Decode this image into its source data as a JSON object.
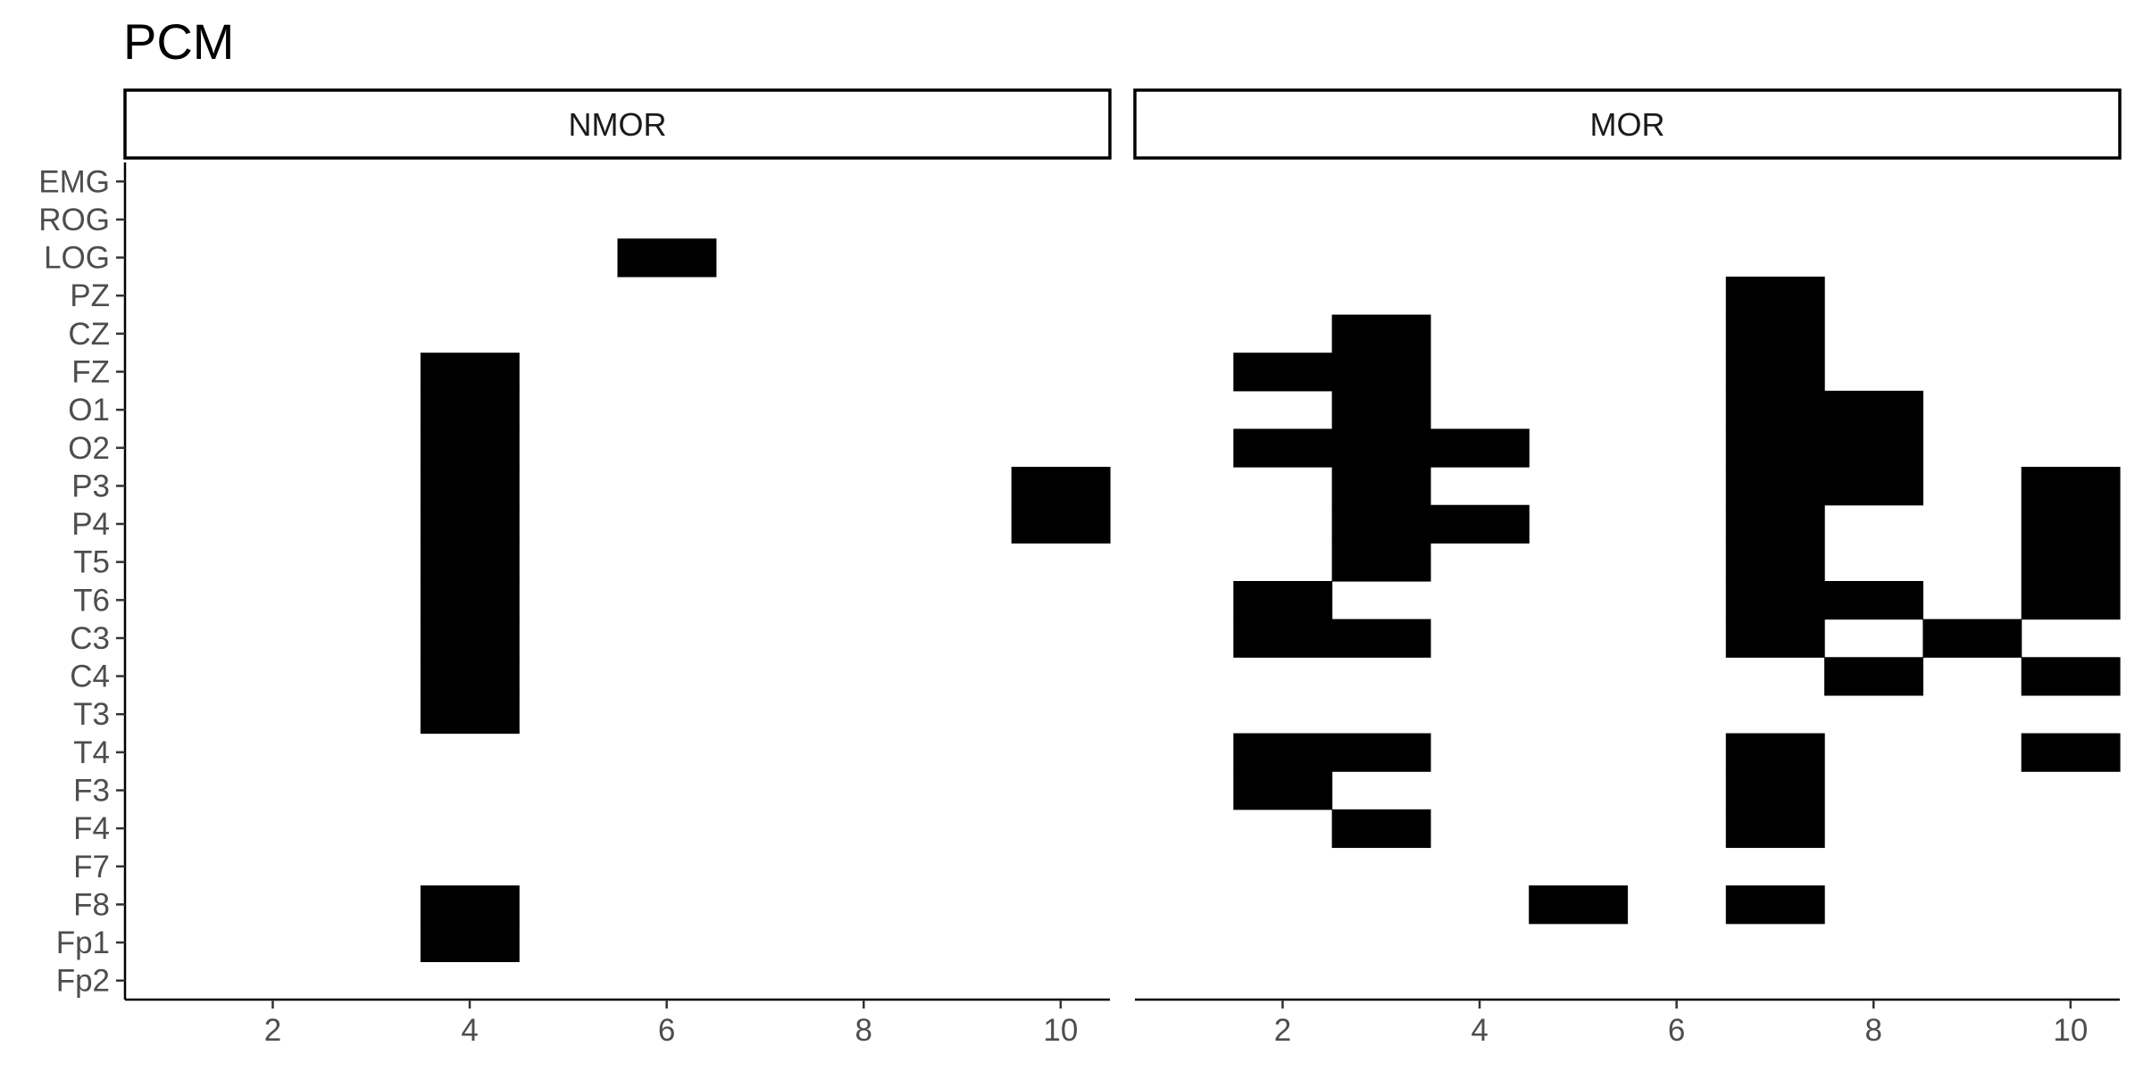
{
  "chart_data": {
    "type": "heatmap",
    "title": "PCM",
    "xlabel": "",
    "ylabel": "",
    "xlim": [
      0.5,
      10.5
    ],
    "x_ticks": [
      2,
      4,
      6,
      8,
      10
    ],
    "y_categories": [
      "EMG",
      "ROG",
      "LOG",
      "PZ",
      "CZ",
      "FZ",
      "O1",
      "O2",
      "P3",
      "P4",
      "T5",
      "T6",
      "C3",
      "C4",
      "T3",
      "T4",
      "F3",
      "F4",
      "F7",
      "F8",
      "Fp1",
      "Fp2"
    ],
    "fill_color": "#000000",
    "grid": false,
    "legend": "none",
    "panels": [
      {
        "name": "NMOR",
        "tiles": [
          {
            "x": 4,
            "y": "FZ"
          },
          {
            "x": 4,
            "y": "O1"
          },
          {
            "x": 4,
            "y": "O2"
          },
          {
            "x": 4,
            "y": "P3"
          },
          {
            "x": 4,
            "y": "P4"
          },
          {
            "x": 4,
            "y": "T5"
          },
          {
            "x": 4,
            "y": "T6"
          },
          {
            "x": 4,
            "y": "C3"
          },
          {
            "x": 4,
            "y": "C4"
          },
          {
            "x": 4,
            "y": "T3"
          },
          {
            "x": 4,
            "y": "F8"
          },
          {
            "x": 4,
            "y": "Fp1"
          },
          {
            "x": 6,
            "y": "LOG"
          },
          {
            "x": 10,
            "y": "P3"
          },
          {
            "x": 10,
            "y": "P4"
          }
        ]
      },
      {
        "name": "MOR",
        "tiles": [
          {
            "x": 2,
            "y": "FZ"
          },
          {
            "x": 2,
            "y": "O2"
          },
          {
            "x": 2,
            "y": "T6"
          },
          {
            "x": 2,
            "y": "C3"
          },
          {
            "x": 2,
            "y": "T4"
          },
          {
            "x": 2,
            "y": "F3"
          },
          {
            "x": 3,
            "y": "CZ"
          },
          {
            "x": 3,
            "y": "FZ"
          },
          {
            "x": 3,
            "y": "O1"
          },
          {
            "x": 3,
            "y": "O2"
          },
          {
            "x": 3,
            "y": "P3"
          },
          {
            "x": 3,
            "y": "P4"
          },
          {
            "x": 3,
            "y": "T5"
          },
          {
            "x": 3,
            "y": "C3"
          },
          {
            "x": 3,
            "y": "T4"
          },
          {
            "x": 3,
            "y": "F4"
          },
          {
            "x": 4,
            "y": "O2"
          },
          {
            "x": 4,
            "y": "P4"
          },
          {
            "x": 5,
            "y": "F8"
          },
          {
            "x": 7,
            "y": "PZ"
          },
          {
            "x": 7,
            "y": "CZ"
          },
          {
            "x": 7,
            "y": "FZ"
          },
          {
            "x": 7,
            "y": "O1"
          },
          {
            "x": 7,
            "y": "O2"
          },
          {
            "x": 7,
            "y": "P3"
          },
          {
            "x": 7,
            "y": "P4"
          },
          {
            "x": 7,
            "y": "T5"
          },
          {
            "x": 7,
            "y": "T6"
          },
          {
            "x": 7,
            "y": "C3"
          },
          {
            "x": 7,
            "y": "T4"
          },
          {
            "x": 7,
            "y": "F3"
          },
          {
            "x": 7,
            "y": "F4"
          },
          {
            "x": 7,
            "y": "F8"
          },
          {
            "x": 8,
            "y": "O1"
          },
          {
            "x": 8,
            "y": "O2"
          },
          {
            "x": 8,
            "y": "P3"
          },
          {
            "x": 8,
            "y": "T6"
          },
          {
            "x": 8,
            "y": "C4"
          },
          {
            "x": 9,
            "y": "C3"
          },
          {
            "x": 10,
            "y": "P3"
          },
          {
            "x": 10,
            "y": "P4"
          },
          {
            "x": 10,
            "y": "T5"
          },
          {
            "x": 10,
            "y": "T6"
          },
          {
            "x": 10,
            "y": "C4"
          },
          {
            "x": 10,
            "y": "T4"
          }
        ]
      }
    ]
  }
}
